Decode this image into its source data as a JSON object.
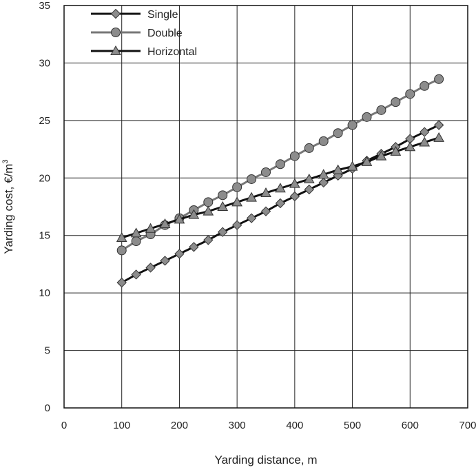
{
  "chart_data": {
    "type": "line",
    "xlabel": "Yarding distance, m",
    "ylabel": "Yarding cost, €/m",
    "ylabel_sup": "3",
    "xlim": [
      0,
      700
    ],
    "ylim": [
      0,
      35
    ],
    "xticks": [
      0,
      100,
      200,
      300,
      400,
      500,
      600,
      700
    ],
    "yticks": [
      0,
      5,
      10,
      15,
      20,
      25,
      30,
      35
    ],
    "grid": true,
    "legend_position": "top-left",
    "x": [
      100,
      125,
      150,
      175,
      200,
      225,
      250,
      275,
      300,
      325,
      350,
      375,
      400,
      425,
      450,
      475,
      500,
      525,
      550,
      575,
      600,
      625,
      650
    ],
    "series": [
      {
        "name": "Single",
        "marker": "diamond",
        "line_color": "#111111",
        "marker_color": "#8c8c8c",
        "values": [
          10.9,
          11.6,
          12.2,
          12.8,
          13.4,
          14.0,
          14.6,
          15.3,
          15.9,
          16.5,
          17.1,
          17.8,
          18.4,
          19.0,
          19.6,
          20.2,
          20.8,
          21.5,
          22.1,
          22.7,
          23.4,
          24.0,
          24.6
        ]
      },
      {
        "name": "Double",
        "marker": "circle",
        "line_color": "#777777",
        "marker_color": "#8c8c8c",
        "values": [
          13.7,
          14.5,
          15.1,
          15.9,
          16.5,
          17.2,
          17.9,
          18.5,
          19.2,
          19.9,
          20.5,
          21.2,
          21.9,
          22.6,
          23.2,
          23.9,
          24.6,
          25.3,
          25.9,
          26.6,
          27.3,
          28.0,
          28.6
        ]
      },
      {
        "name": "Horizontal",
        "marker": "triangle",
        "line_color": "#111111",
        "marker_color": "#8c8c8c",
        "values": [
          14.8,
          15.2,
          15.6,
          16.0,
          16.4,
          16.8,
          17.1,
          17.5,
          17.9,
          18.3,
          18.7,
          19.1,
          19.5,
          19.9,
          20.3,
          20.7,
          21.0,
          21.4,
          21.9,
          22.3,
          22.7,
          23.1,
          23.5
        ]
      }
    ]
  }
}
